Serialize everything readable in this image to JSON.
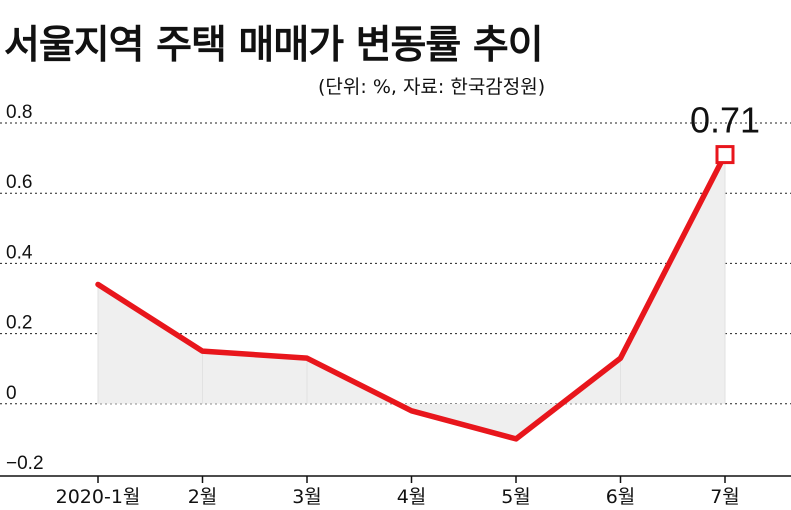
{
  "header": {
    "title": "서울지역 주택 매매가 변동률 추이",
    "subtitle": "(단위: %, 자료: 한국감정원)"
  },
  "chart_data": {
    "type": "area",
    "title": "서울지역 주택 매매가 변동률 추이",
    "subtitle": "(단위: %, 자료: 한국감정원)",
    "categories": [
      "2020-1월",
      "2월",
      "3월",
      "4월",
      "5월",
      "6월",
      "7월"
    ],
    "series": [
      {
        "values": [
          0.34,
          0.15,
          0.13,
          -0.02,
          -0.1,
          0.13,
          0.71
        ]
      }
    ],
    "yticks": [
      "0.8",
      "0.6",
      "0.4",
      "0.2",
      "0",
      "−0.2"
    ],
    "ylim": [
      -0.2,
      0.8
    ],
    "grid": true,
    "highlight": {
      "index": 6,
      "label": "0.71"
    },
    "colors": {
      "line": "#e8161c",
      "area": "#efefef",
      "grid": "#222222"
    }
  }
}
